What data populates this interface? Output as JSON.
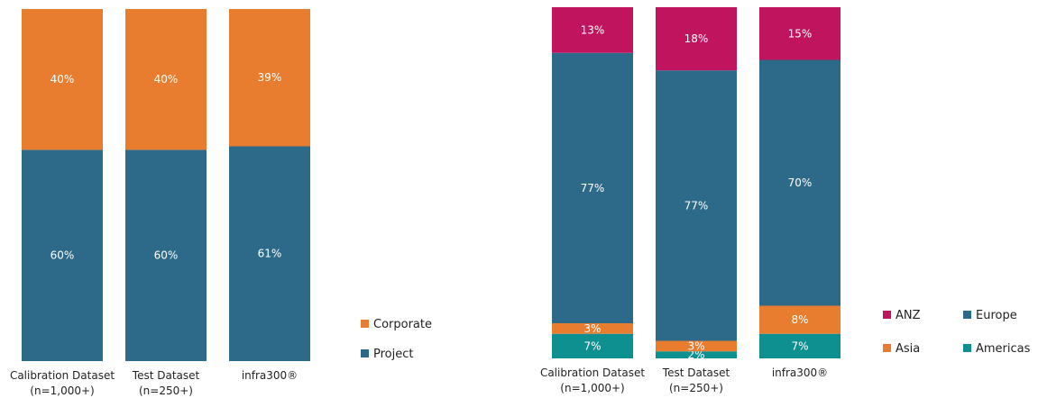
{
  "colors": {
    "project": "#2d6a8a",
    "corporate": "#e87d30",
    "anz": "#c0145e",
    "europe": "#2d6a8a",
    "asia": "#e87d30",
    "americas": "#0f9090"
  },
  "chart_data": [
    {
      "type": "bar",
      "stacked": true,
      "normalized": true,
      "categories": [
        [
          "Calibration Dataset",
          "(n=1,000+)"
        ],
        [
          "Test Dataset",
          "(n=250+)"
        ],
        [
          "infra300®"
        ]
      ],
      "series": [
        {
          "name": "Project",
          "color_key": "project",
          "values": [
            60,
            60,
            61
          ],
          "labels": [
            "60%",
            "60%",
            "61%"
          ]
        },
        {
          "name": "Corporate",
          "color_key": "corporate",
          "values": [
            40,
            40,
            39
          ],
          "labels": [
            "40%",
            "40%",
            "39%"
          ]
        }
      ],
      "legend_order": [
        "Corporate",
        "Project"
      ]
    },
    {
      "type": "bar",
      "stacked": true,
      "normalized": true,
      "categories": [
        [
          "Calibration Dataset",
          "(n=1,000+)"
        ],
        [
          "Test Dataset",
          "(n=250+)"
        ],
        [
          "infra300®"
        ]
      ],
      "series": [
        {
          "name": "Americas",
          "color_key": "americas",
          "values": [
            7,
            2,
            7
          ],
          "labels": [
            "7%",
            "2%",
            "7%"
          ]
        },
        {
          "name": "Asia",
          "color_key": "asia",
          "values": [
            3,
            3,
            8
          ],
          "labels": [
            "3%",
            "3%",
            "8%"
          ]
        },
        {
          "name": "Europe",
          "color_key": "europe",
          "values": [
            77,
            77,
            70
          ],
          "labels": [
            "77%",
            "77%",
            "70%"
          ]
        },
        {
          "name": "ANZ",
          "color_key": "anz",
          "values": [
            13,
            18,
            15
          ],
          "labels": [
            "13%",
            "18%",
            "15%"
          ]
        }
      ],
      "legend_order": [
        "ANZ",
        "Europe",
        "Asia",
        "Americas"
      ]
    }
  ]
}
